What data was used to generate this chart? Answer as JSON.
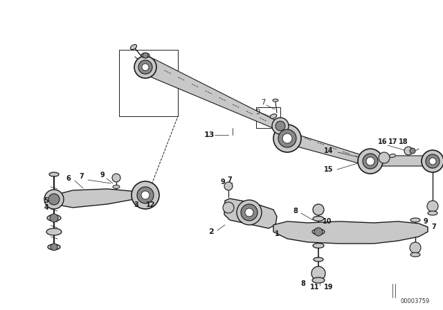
{
  "bg_color": "#ffffff",
  "line_color": "#1a1a1a",
  "fig_width": 6.4,
  "fig_height": 4.48,
  "dpi": 100,
  "watermark": "00003759",
  "title_color": "#000000",
  "gray_fill": "#c8c8c8",
  "dark_gray": "#888888",
  "light_gray": "#e0e0e0"
}
